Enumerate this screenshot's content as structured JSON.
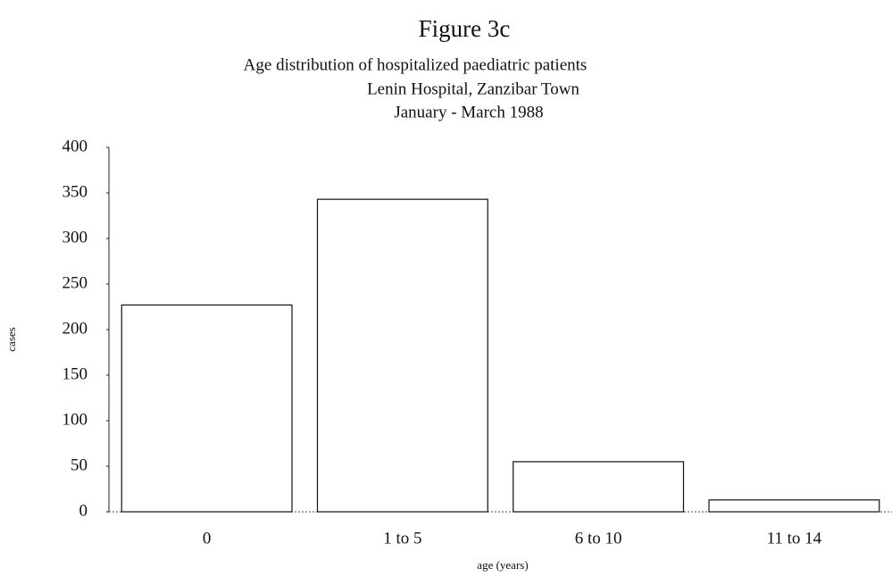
{
  "chart_data": {
    "type": "bar",
    "title": "Figure 3c",
    "subtitle": [
      "Age distribution of hospitalized paediatric patients",
      "Lenin  Hospital,  Zanzibar Town",
      "January - March 1988"
    ],
    "x_label": "age (years)",
    "y_label": "cases",
    "categories": [
      "0",
      "1 to 5",
      "6 to 10",
      "11 to 14"
    ],
    "values": [
      227,
      343,
      55,
      13
    ],
    "color": "#ffffff",
    "ylim": [
      0,
      400
    ],
    "yticks": [
      0,
      50,
      100,
      150,
      200,
      250,
      300,
      350,
      400
    ],
    "grid": false
  }
}
